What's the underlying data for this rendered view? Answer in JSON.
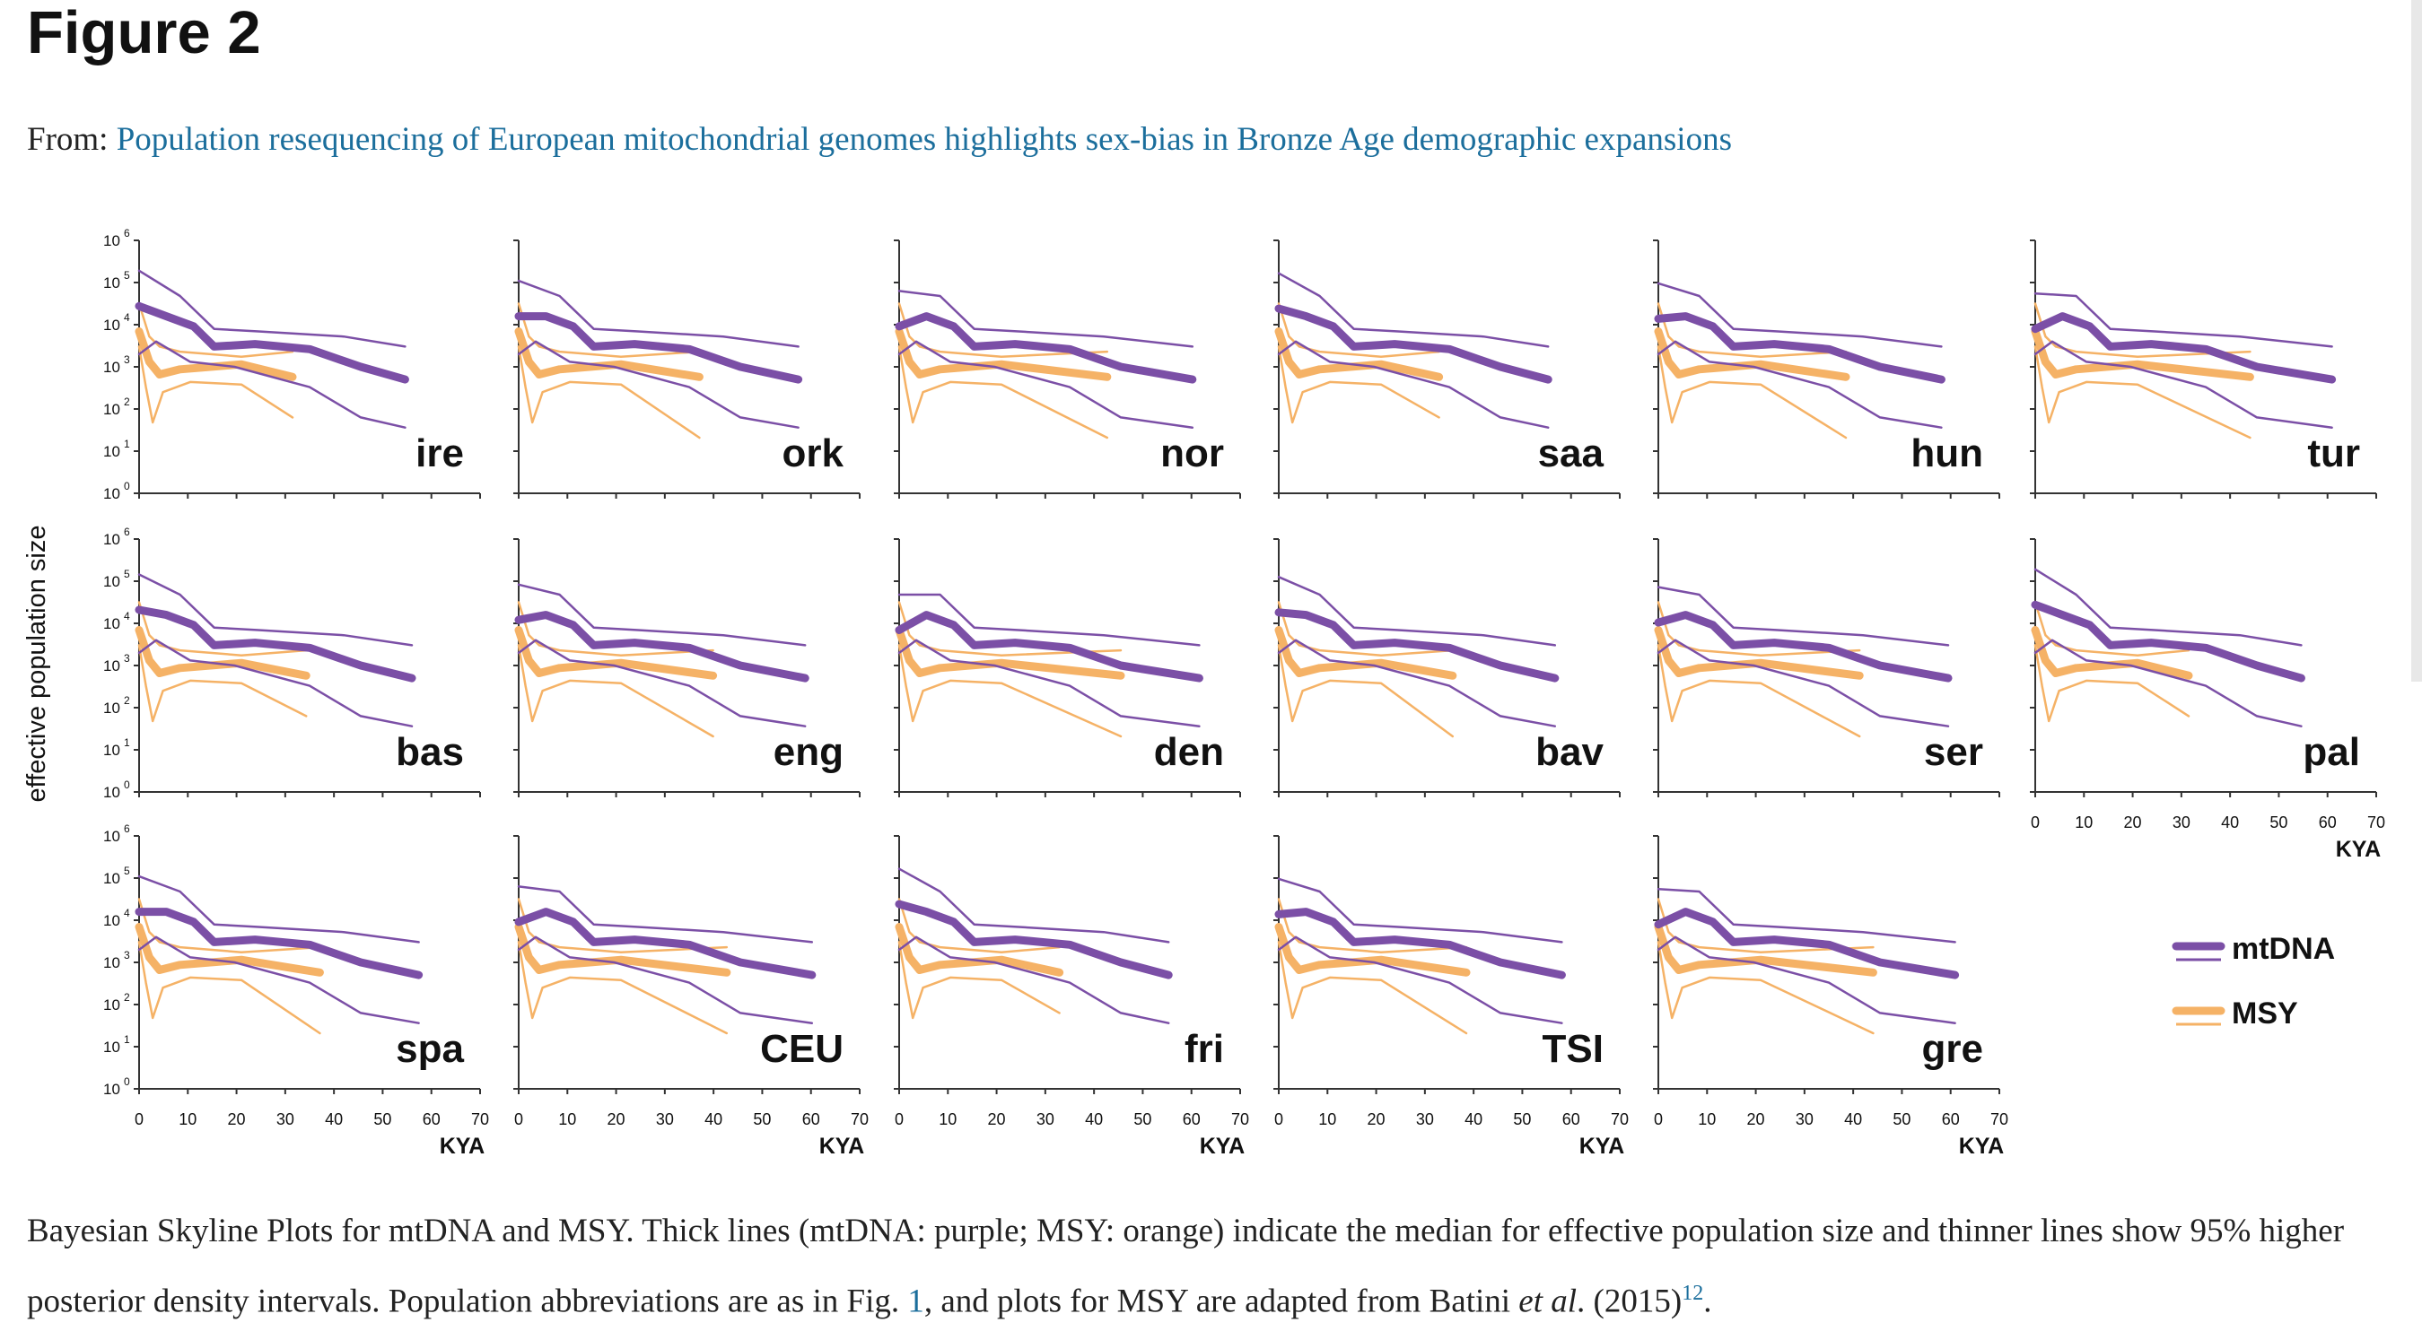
{
  "header": {
    "title": "Figure 2",
    "from_label": "From:",
    "article_link": "Population resequencing of European mitochondrial genomes highlights sex-bias in Bronze Age demographic expansions"
  },
  "figure": {
    "y_axis_label": "effective population size",
    "x_axis_label": "KYA",
    "y_tick_base": "10",
    "y_tick_exponents": [
      "0",
      "1",
      "2",
      "3",
      "4",
      "5",
      "6"
    ],
    "x_ticks": [
      "0",
      "10",
      "20",
      "30",
      "40",
      "50",
      "60",
      "70"
    ],
    "panels": [
      "ire",
      "ork",
      "nor",
      "saa",
      "hun",
      "tur",
      "bas",
      "eng",
      "den",
      "bav",
      "ser",
      "pal",
      "spa",
      "CEU",
      "fri",
      "TSI",
      "gre"
    ],
    "legend": [
      {
        "label": "mtDNA",
        "color": "#7b4fa6"
      },
      {
        "label": "MSY",
        "color": "#f5b266"
      }
    ]
  },
  "caption": {
    "text_1": "Bayesian Skyline Plots for mtDNA and MSY. Thick lines (mtDNA: purple; MSY: orange) indicate the median for effective population size and thinner lines show 95% higher posterior density intervals. Population abbreviations are as in Fig. ",
    "fig_ref": "1",
    "text_2": ", and plots for MSY are adapted from Batini ",
    "et_al": "et al",
    "text_3": ". (2015)",
    "ref_num": "12",
    "text_4": "."
  }
}
